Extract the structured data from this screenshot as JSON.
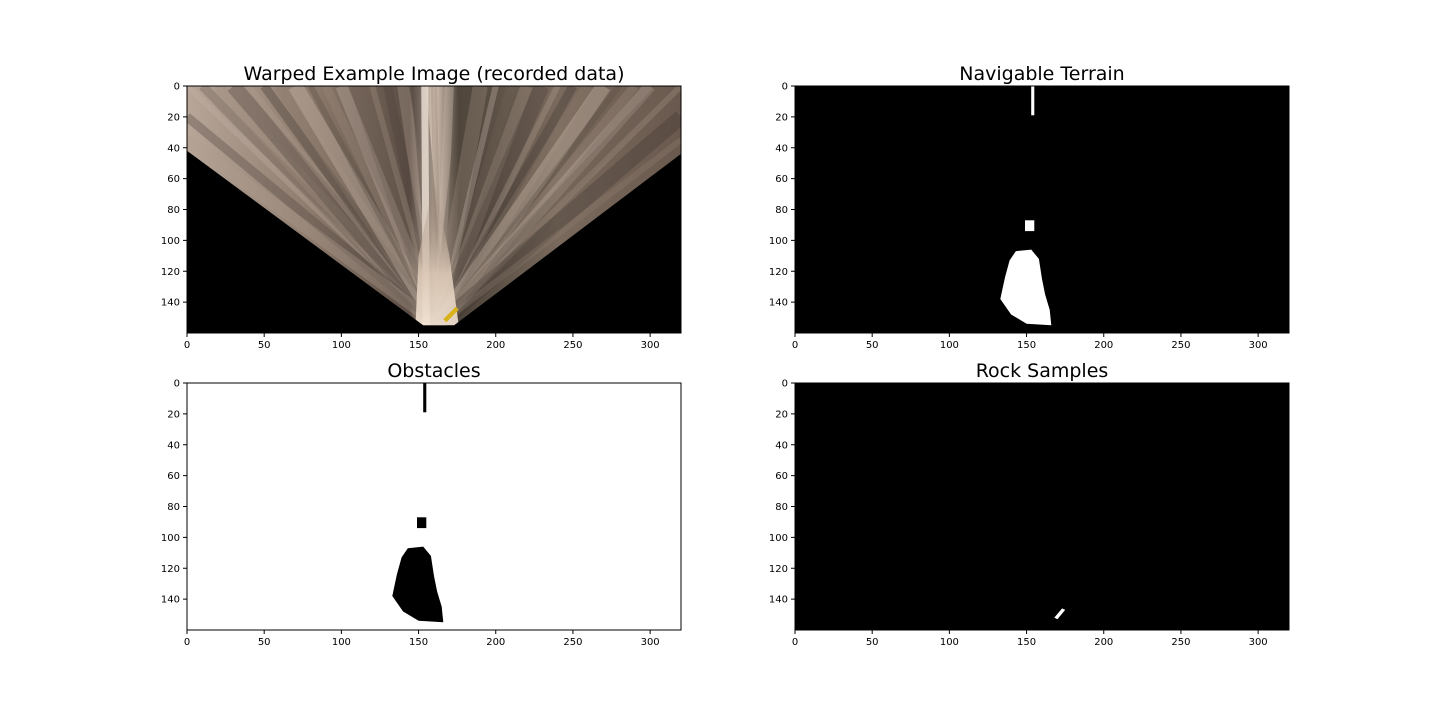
{
  "chart_data": [
    {
      "type": "image",
      "title": "Warped Example Image (recorded data)",
      "xlim": [
        0,
        320
      ],
      "ylim": [
        160,
        0
      ],
      "xticks": [
        0,
        50,
        100,
        150,
        200,
        250,
        300
      ],
      "yticks": [
        0,
        20,
        40,
        60,
        80,
        100,
        120,
        140
      ],
      "content": "warped-camera-view",
      "regions": {
        "visible_fan": [
          [
            0,
            0
          ],
          [
            320,
            0
          ],
          [
            320,
            44
          ],
          [
            173,
            155
          ],
          [
            153,
            155
          ],
          [
            0,
            42
          ]
        ],
        "masked_left": [
          [
            0,
            42
          ],
          [
            153,
            155
          ],
          [
            153,
            160
          ],
          [
            0,
            160
          ]
        ],
        "masked_right": [
          [
            320,
            44
          ],
          [
            173,
            155
          ],
          [
            173,
            160
          ],
          [
            320,
            160
          ]
        ],
        "rock": [
          [
            166,
            151
          ],
          [
            174,
            143
          ],
          [
            176,
            145
          ],
          [
            168,
            153
          ]
        ]
      },
      "colors": {
        "terrain": "#a38f7e",
        "sand": "#e6d6c6",
        "mask": "#000000",
        "rock": "#d8b21a"
      }
    },
    {
      "type": "image",
      "title": "Navigable Terrain",
      "xlim": [
        0,
        320
      ],
      "ylim": [
        160,
        0
      ],
      "xticks": [
        0,
        50,
        100,
        150,
        200,
        250,
        300
      ],
      "yticks": [
        0,
        20,
        40,
        60,
        80,
        100,
        120,
        140
      ],
      "background": "#000000",
      "foreground": "#ffffff",
      "regions": {
        "stripe": [
          [
            153,
            0
          ],
          [
            155,
            0
          ],
          [
            155,
            19
          ],
          [
            153,
            19
          ]
        ],
        "blob_small": [
          [
            149,
            87
          ],
          [
            155,
            87
          ],
          [
            155,
            94
          ],
          [
            149,
            94
          ]
        ],
        "blob_main": [
          [
            143,
            107
          ],
          [
            153,
            106
          ],
          [
            158,
            112
          ],
          [
            160,
            125
          ],
          [
            162,
            135
          ],
          [
            165,
            145
          ],
          [
            166,
            155
          ],
          [
            150,
            154
          ],
          [
            140,
            148
          ],
          [
            133,
            138
          ],
          [
            136,
            124
          ],
          [
            139,
            113
          ]
        ]
      }
    },
    {
      "type": "image",
      "title": "Obstacles",
      "xlim": [
        0,
        320
      ],
      "ylim": [
        160,
        0
      ],
      "xticks": [
        0,
        50,
        100,
        150,
        200,
        250,
        300
      ],
      "yticks": [
        0,
        20,
        40,
        60,
        80,
        100,
        120,
        140
      ],
      "background": "#ffffff",
      "foreground": "#000000",
      "regions": {
        "stripe": [
          [
            153,
            0
          ],
          [
            155,
            0
          ],
          [
            155,
            19
          ],
          [
            153,
            19
          ]
        ],
        "blob_small": [
          [
            149,
            87
          ],
          [
            155,
            87
          ],
          [
            155,
            94
          ],
          [
            149,
            94
          ]
        ],
        "blob_main": [
          [
            143,
            107
          ],
          [
            153,
            106
          ],
          [
            158,
            112
          ],
          [
            160,
            125
          ],
          [
            162,
            135
          ],
          [
            165,
            145
          ],
          [
            166,
            155
          ],
          [
            150,
            154
          ],
          [
            140,
            148
          ],
          [
            133,
            138
          ],
          [
            136,
            124
          ],
          [
            139,
            113
          ]
        ]
      }
    },
    {
      "type": "image",
      "title": "Rock Samples",
      "xlim": [
        0,
        320
      ],
      "ylim": [
        160,
        0
      ],
      "xticks": [
        0,
        50,
        100,
        150,
        200,
        250,
        300
      ],
      "yticks": [
        0,
        20,
        40,
        60,
        80,
        100,
        120,
        140
      ],
      "background": "#000000",
      "foreground": "#ffffff",
      "regions": {
        "rock": [
          [
            168,
            152
          ],
          [
            173,
            146
          ],
          [
            175,
            147
          ],
          [
            170,
            153
          ]
        ]
      }
    }
  ]
}
